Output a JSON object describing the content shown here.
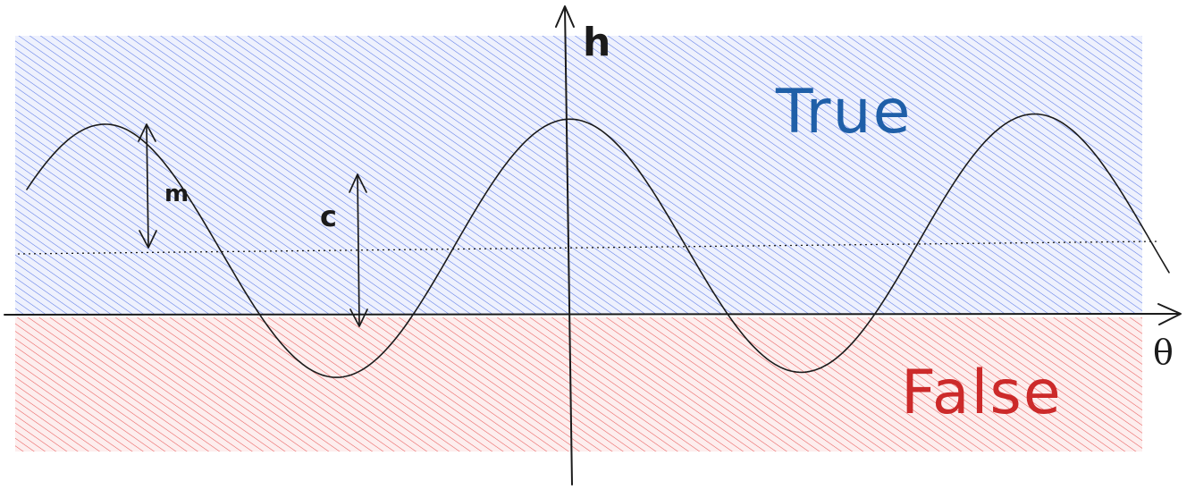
{
  "labels": {
    "y_axis": "h",
    "x_axis": "θ",
    "true_region": "True",
    "false_region": "False",
    "amplitude": "m",
    "offset": "c"
  },
  "colors": {
    "true_hatch": "#5a78e6",
    "true_bg": "#eef1fd",
    "false_hatch": "#e85a5a",
    "false_bg": "#fdeeee",
    "true_text": "#1f5fa8",
    "false_text": "#cc2a2a",
    "ink": "#1b1b1b"
  }
}
